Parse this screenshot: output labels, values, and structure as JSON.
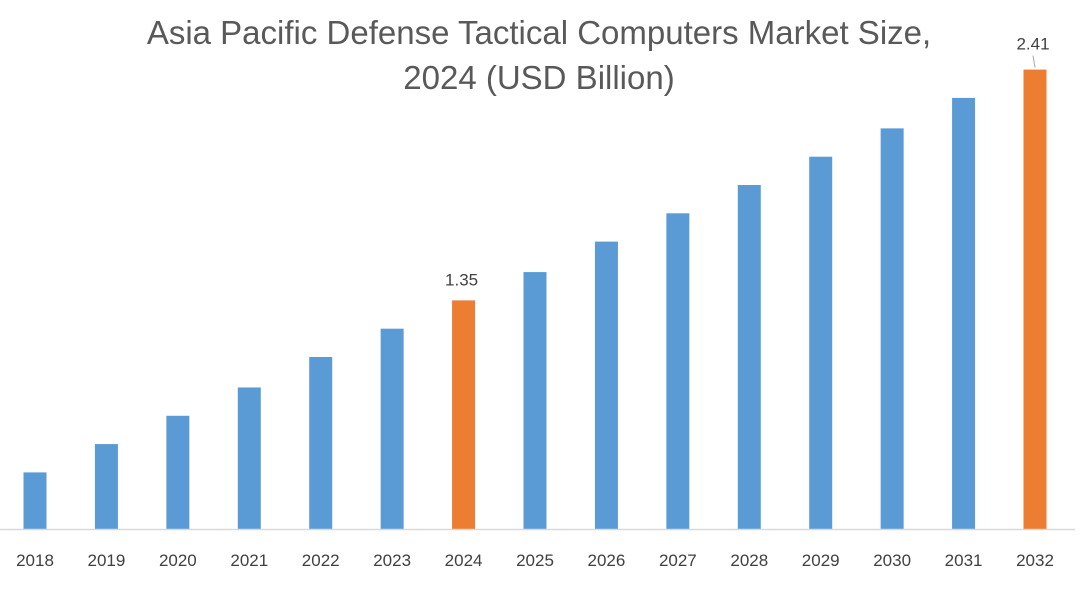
{
  "chart_data": {
    "type": "bar",
    "title": "Asia Pacific Defense Tactical Computers Market Size, 2024 (USD Billion)",
    "title_lines": [
      "Asia Pacific Defense Tactical Computers Market Size,",
      "2024 (USD Billion)"
    ],
    "xlabel": "",
    "ylabel": "",
    "categories": [
      "2018",
      "2019",
      "2020",
      "2021",
      "2022",
      "2023",
      "2024",
      "2025",
      "2026",
      "2027",
      "2028",
      "2029",
      "2030",
      "2031",
      "2032"
    ],
    "values": [
      0.56,
      0.69,
      0.82,
      0.95,
      1.09,
      1.22,
      1.35,
      1.48,
      1.62,
      1.75,
      1.88,
      2.01,
      2.14,
      2.28,
      2.41
    ],
    "ylim": [
      0.3,
      2.5
    ],
    "grid": false,
    "y_axis_visible": false,
    "data_labels": {
      "2024": "1.35",
      "2032": "2.41"
    },
    "colors": {
      "default": "#5B9BD5",
      "highlight": "#ED7D31",
      "baseline": "#D9D9D9"
    },
    "highlighted": [
      "2024",
      "2032"
    ]
  }
}
